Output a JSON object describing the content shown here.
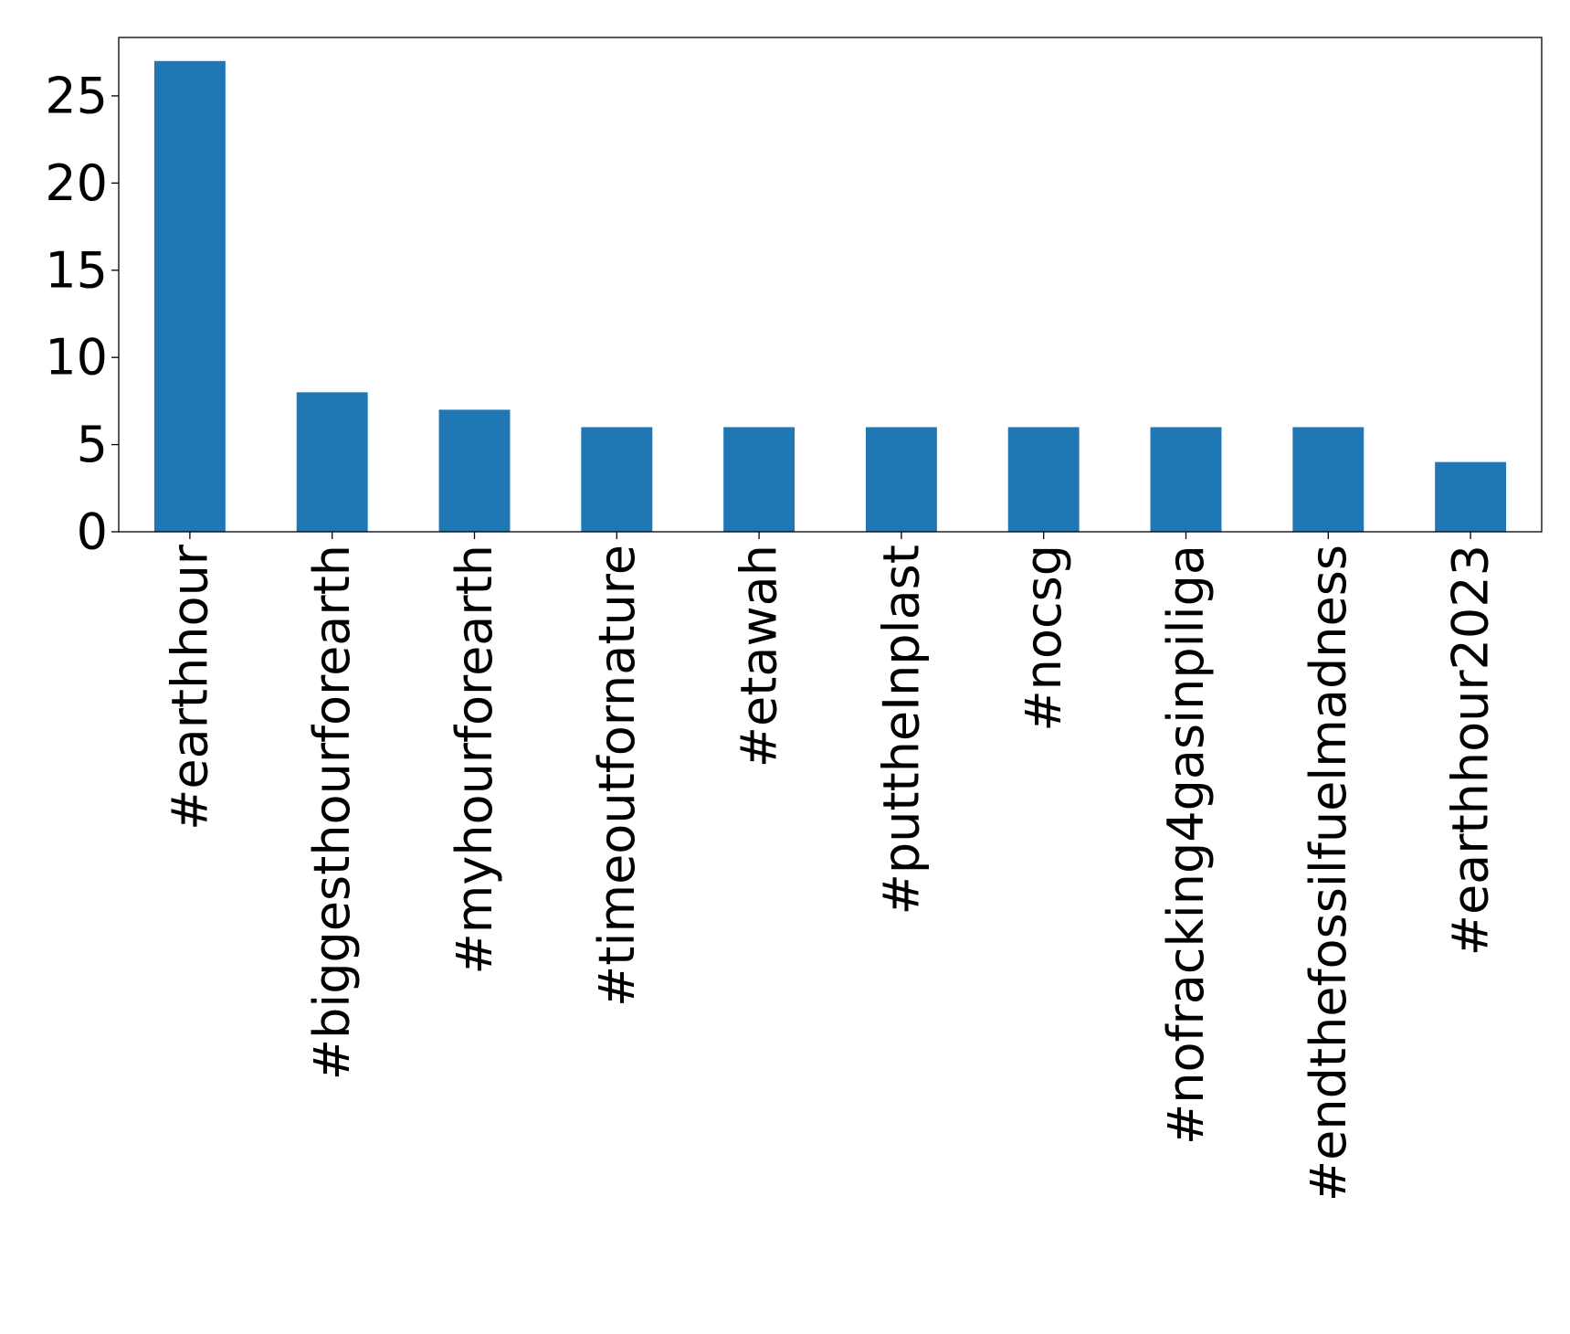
{
  "chart_data": {
    "type": "bar",
    "categories": [
      "#earthhour",
      "#biggesthourforearth",
      "#myhourforearth",
      "#timeoutfornature",
      "#etawah",
      "#puttheInplast",
      "#nocsg",
      "#nofracking4gasinpiliga",
      "#endthefossilfuelmadness",
      "#earthhour2023"
    ],
    "values": [
      27,
      8,
      7,
      6,
      6,
      6,
      6,
      6,
      6,
      4
    ],
    "title": "",
    "xlabel": "",
    "ylabel": "",
    "ylim": [
      0,
      28.35
    ],
    "yticks": [
      0,
      5,
      10,
      15,
      20,
      25
    ],
    "grid": false,
    "bar_color": "#1f77b4",
    "xtick_rotation": 90
  }
}
